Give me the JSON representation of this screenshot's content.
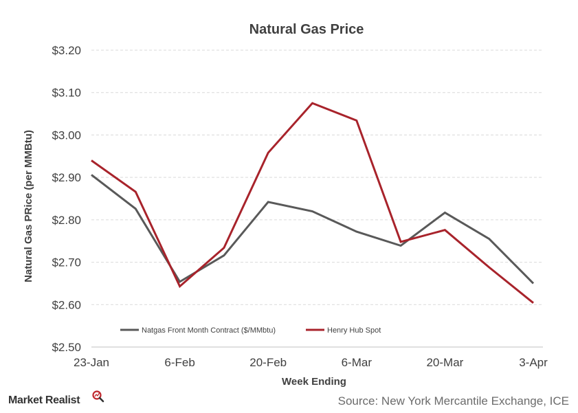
{
  "chart_data": {
    "type": "line",
    "title": "Natural Gas Price",
    "xlabel": "Week Ending",
    "ylabel": "Natural Gas PRice (per MMBtu)",
    "ylim": [
      2.5,
      3.2
    ],
    "y_ticks": [
      "$3.20",
      "$3.10",
      "$3.00",
      "$2.90",
      "$2.80",
      "$2.70",
      "$2.60",
      "$2.50"
    ],
    "x_ticks": [
      "23-Jan",
      "6-Feb",
      "20-Feb",
      "6-Mar",
      "20-Mar",
      "3-Apr"
    ],
    "x": [
      "23-Jan",
      "30-Jan",
      "6-Feb",
      "13-Feb",
      "20-Feb",
      "27-Feb",
      "6-Mar",
      "13-Mar",
      "20-Mar",
      "27-Mar",
      "3-Apr"
    ],
    "grid": true,
    "legend_position": "bottom-left",
    "series": [
      {
        "name": "Natgas Front Month Contract ($/MMbtu)",
        "color": "#595959",
        "values": [
          2.906,
          2.826,
          2.654,
          2.716,
          2.842,
          2.82,
          2.772,
          2.739,
          2.817,
          2.755,
          2.65
        ]
      },
      {
        "name": "Henry Hub Spot",
        "color": "#a8232b",
        "values": [
          2.94,
          2.866,
          2.643,
          2.734,
          2.958,
          3.075,
          3.034,
          2.748,
          2.776,
          2.688,
          2.604
        ]
      }
    ]
  },
  "source": "Source: New York Mercantile Exchange, ICE",
  "brand": {
    "name": "Market Realist",
    "icon": "magnifier-icon",
    "color": "#c0272d"
  }
}
